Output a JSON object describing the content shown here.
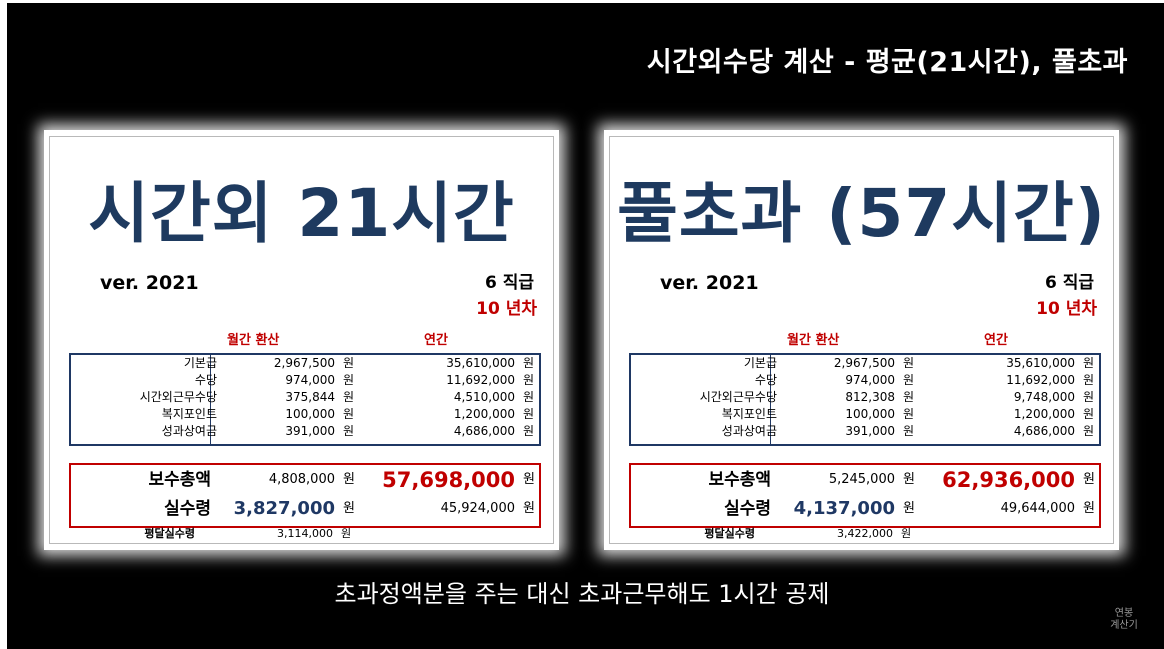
{
  "header": {
    "title": "시간외수당 계산 - 평균(21시간), 풀초과"
  },
  "caption": "초과정액분을 주는 대신 초과근무해도 1시간 공제",
  "watermark": {
    "line1": "연봉",
    "line2": "계산기"
  },
  "cards": [
    {
      "title": "시간외 21시간",
      "version": "ver. 2021",
      "rank": "6 직급",
      "years": "10 년차",
      "col_monthly": "월간 환산",
      "col_annual": "연간",
      "items": [
        {
          "label": "기본급",
          "monthly": "2,967,500",
          "annual": "35,610,000"
        },
        {
          "label": "수당",
          "monthly": "974,000",
          "annual": "11,692,000"
        },
        {
          "label": "시간외근무수당",
          "monthly": "375,844",
          "annual": "4,510,000"
        },
        {
          "label": "복지포인트",
          "monthly": "100,000",
          "annual": "1,200,000"
        },
        {
          "label": "성과상여금",
          "monthly": "391,000",
          "annual": "4,686,000"
        }
      ],
      "total": {
        "label": "보수총액",
        "monthly": "4,808,000",
        "annual": "57,698,000"
      },
      "net": {
        "label": "실수령",
        "monthly": "3,827,000",
        "annual": "45,924,000"
      },
      "avg_net": {
        "label": "평달실수령",
        "monthly": "3,114,000"
      },
      "unit": "원"
    },
    {
      "title": "풀초과 (57시간)",
      "version": "ver. 2021",
      "rank": "6 직급",
      "years": "10 년차",
      "col_monthly": "월간 환산",
      "col_annual": "연간",
      "items": [
        {
          "label": "기본급",
          "monthly": "2,967,500",
          "annual": "35,610,000"
        },
        {
          "label": "수당",
          "monthly": "974,000",
          "annual": "11,692,000"
        },
        {
          "label": "시간외근무수당",
          "monthly": "812,308",
          "annual": "9,748,000"
        },
        {
          "label": "복지포인트",
          "monthly": "100,000",
          "annual": "1,200,000"
        },
        {
          "label": "성과상여금",
          "monthly": "391,000",
          "annual": "4,686,000"
        }
      ],
      "total": {
        "label": "보수총액",
        "monthly": "5,245,000",
        "annual": "62,936,000"
      },
      "net": {
        "label": "실수령",
        "monthly": "4,137,000",
        "annual": "49,644,000"
      },
      "avg_net": {
        "label": "평달실수령",
        "monthly": "3,422,000"
      },
      "unit": "원"
    }
  ]
}
